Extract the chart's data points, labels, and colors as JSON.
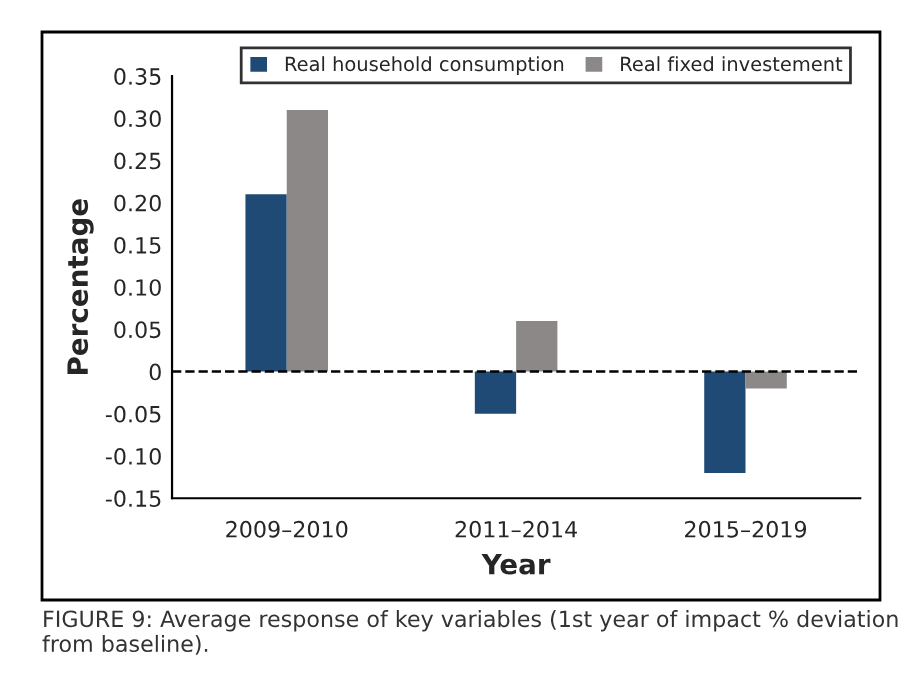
{
  "chart_data": {
    "type": "bar",
    "xlabel": "Year",
    "ylabel": "Percentage",
    "categories": [
      "2009–2010",
      "2011–2014",
      "2015–2019"
    ],
    "series": [
      {
        "name": "Real household consumption",
        "color": "#1f4a75",
        "values": [
          0.21,
          -0.05,
          -0.12
        ]
      },
      {
        "name": "Real fixed investement",
        "color": "#8c8888",
        "values": [
          0.31,
          0.06,
          -0.02
        ]
      }
    ],
    "ylim": [
      -0.15,
      0.35
    ],
    "yticks": [
      {
        "value": -0.15,
        "label": "-0.15"
      },
      {
        "value": -0.1,
        "label": "-0.10"
      },
      {
        "value": -0.05,
        "label": "-0.05"
      },
      0,
      {
        "value": 0.05,
        "label": "0.05"
      },
      {
        "value": 0.1,
        "label": "0.10"
      },
      {
        "value": 0.15,
        "label": "0.15"
      },
      {
        "value": 0.2,
        "label": "0.20"
      },
      {
        "value": 0.25,
        "label": "0.25"
      },
      {
        "value": 0.3,
        "label": "0.30"
      },
      {
        "value": 0.35,
        "label": "0.35"
      }
    ],
    "ref_lines": [
      {
        "axis": "y",
        "value": 0,
        "color": "#000000",
        "line_style": "dashed"
      }
    ],
    "legend": "top right",
    "grid": false,
    "annotations": [
      "FIGURE 9: Average response of key variables (1st year of impact % deviation from baseline)."
    ]
  }
}
